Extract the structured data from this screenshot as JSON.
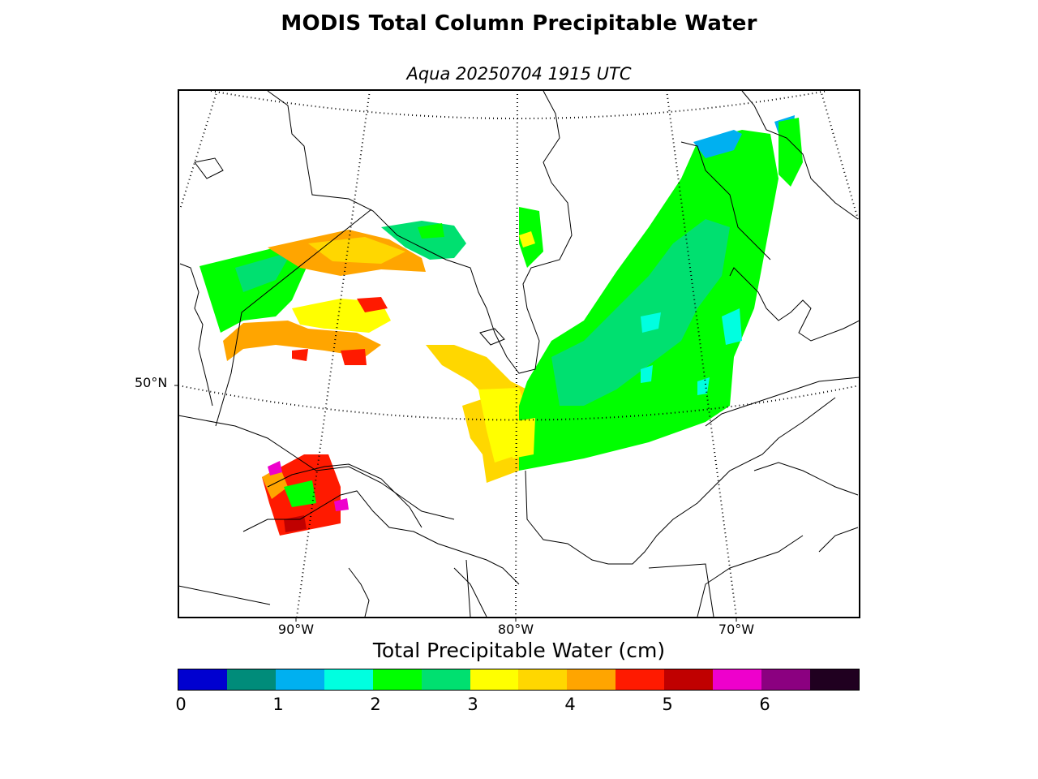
{
  "title": "MODIS Total Column Precipitable Water",
  "subtitle": "Aqua 20250704 1915 UTC",
  "map": {
    "lat_labels": [
      "50°N"
    ],
    "lon_labels": [
      "90°W",
      "80°W",
      "70°W"
    ]
  },
  "colorbar": {
    "label": "Total Precipitable Water (cm)",
    "ticks": [
      "0",
      "1",
      "2",
      "3",
      "4",
      "5",
      "6"
    ],
    "colors": [
      "#0000d0",
      "#008c7a",
      "#00b0f0",
      "#00ffe0",
      "#00ff00",
      "#00e070",
      "#ffff00",
      "#ffd700",
      "#ffa500",
      "#ff1a00",
      "#c00000",
      "#ee00cc",
      "#8b0080",
      "#200020"
    ]
  }
}
